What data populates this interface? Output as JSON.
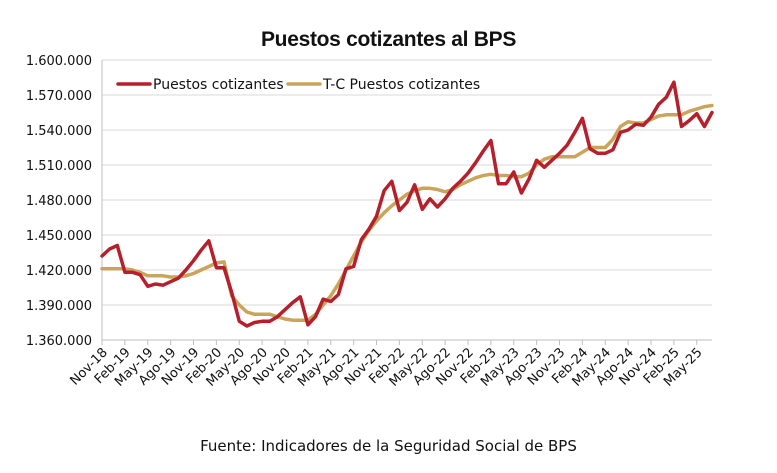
{
  "chart_data": {
    "type": "line",
    "title": "Puestos cotizantes al BPS",
    "source": "Fuente: Indicadores de la Seguridad Social de BPS",
    "xlabel": "",
    "ylabel": "",
    "ylim": [
      1360000,
      1600000
    ],
    "yticks": [
      "1.360.000",
      "1.390.000",
      "1.420.000",
      "1.450.000",
      "1.480.000",
      "1.510.000",
      "1.540.000",
      "1.570.000",
      "1.600.000"
    ],
    "ytick_values": [
      1360000,
      1390000,
      1420000,
      1450000,
      1480000,
      1510000,
      1540000,
      1570000,
      1600000
    ],
    "xtick_labels": [
      "Nov-18",
      "Feb-19",
      "May-19",
      "Ago-19",
      "Nov-19",
      "Feb-20",
      "May-20",
      "Ago-20",
      "Nov-20",
      "Feb-21",
      "May-21",
      "Ago-21",
      "Nov-21",
      "Feb-22",
      "May-22",
      "Ago-22",
      "Nov-22",
      "Feb-23",
      "May-23",
      "Ago-23",
      "Nov-23",
      "Feb-24",
      "May-24",
      "Ago-24",
      "Nov-24",
      "Feb-25",
      "May-25"
    ],
    "grid": true,
    "legend": "top-left",
    "colors": {
      "series1": "#b5202c",
      "series2": "#c9a45a",
      "grid": "#d9d9d9",
      "axis": "#bfbfbf"
    },
    "series": [
      {
        "name": "Puestos cotizantes",
        "values": [
          1432000,
          1438000,
          1441000,
          1418000,
          1418000,
          1416000,
          1406000,
          1408000,
          1407000,
          1410000,
          1413000,
          1420000,
          1428000,
          1437000,
          1445000,
          1422000,
          1422000,
          1401000,
          1376000,
          1372000,
          1375000,
          1376000,
          1376000,
          1380000,
          1386000,
          1392000,
          1397000,
          1373000,
          1380000,
          1395000,
          1393000,
          1399000,
          1421000,
          1423000,
          1446000,
          1455000,
          1466000,
          1488000,
          1496000,
          1471000,
          1478000,
          1493000,
          1472000,
          1481000,
          1474000,
          1481000,
          1490000,
          1496000,
          1503000,
          1512000,
          1522000,
          1531000,
          1494000,
          1494000,
          1504000,
          1486000,
          1498000,
          1514000,
          1508000,
          1514000,
          1520000,
          1527000,
          1538000,
          1550000,
          1524000,
          1520000,
          1520000,
          1523000,
          1538000,
          1540000,
          1545000,
          1544000,
          1551000,
          1562000,
          1568000,
          1581000,
          1543000,
          1548000,
          1554000,
          1543000,
          1555000
        ]
      },
      {
        "name": "T-C Puestos cotizantes",
        "values": [
          1421000,
          1421000,
          1421000,
          1421000,
          1420000,
          1418000,
          1415000,
          1415000,
          1415000,
          1414000,
          1414000,
          1415000,
          1417000,
          1420000,
          1423000,
          1426000,
          1427000,
          1398000,
          1390000,
          1384000,
          1382000,
          1382000,
          1382000,
          1380000,
          1378000,
          1377000,
          1377000,
          1377000,
          1382000,
          1390000,
          1398000,
          1408000,
          1420000,
          1432000,
          1444000,
          1454000,
          1462000,
          1469000,
          1475000,
          1480000,
          1485000,
          1488000,
          1490000,
          1490000,
          1489000,
          1487000,
          1489000,
          1493000,
          1496000,
          1499000,
          1501000,
          1502000,
          1501000,
          1501000,
          1500000,
          1500000,
          1503000,
          1510000,
          1515000,
          1517000,
          1517000,
          1517000,
          1517000,
          1521000,
          1525000,
          1525000,
          1525000,
          1532000,
          1543000,
          1547000,
          1546000,
          1546000,
          1549000,
          1552000,
          1553000,
          1553000,
          1553000,
          1556000,
          1558000,
          1560000,
          1561000
        ]
      }
    ]
  }
}
